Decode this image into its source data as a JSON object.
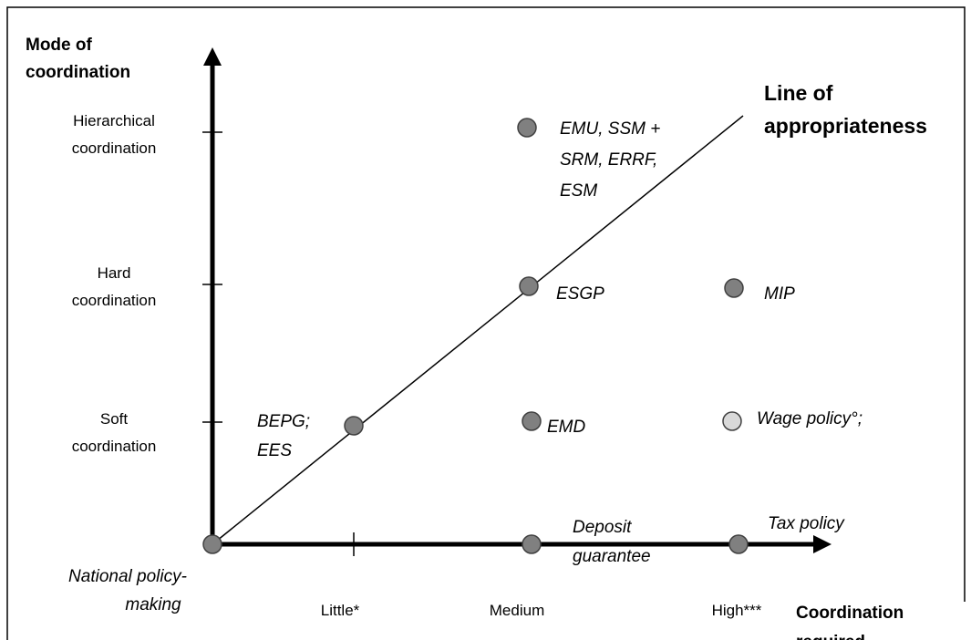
{
  "diagram": {
    "y_axis": {
      "title": [
        "Mode of",
        "coordination"
      ],
      "levels": [
        [
          "Hierarchical",
          "coordination"
        ],
        [
          "Hard",
          "coordination"
        ],
        [
          "Soft",
          "coordination"
        ]
      ]
    },
    "x_axis": {
      "title": [
        "Coordination",
        "required"
      ],
      "levels": [
        "Little*",
        "Medium",
        "High***"
      ]
    },
    "origin_label": [
      "National policy-",
      "making"
    ],
    "line_label": [
      "Line of",
      "appropriateness"
    ],
    "nodes": [
      {
        "label": [
          "EMU, SSM +",
          "SRM, ERRF,",
          "ESM"
        ]
      },
      {
        "label": [
          "ESGP"
        ]
      },
      {
        "label": [
          "MIP"
        ]
      },
      {
        "label": [
          "BEPG;",
          "EES"
        ]
      },
      {
        "label": [
          "EMD"
        ]
      },
      {
        "label": [
          "Wage policy°;"
        ]
      },
      {
        "label": [
          "Deposit",
          "guarantee"
        ]
      },
      {
        "label": [
          "Tax policy"
        ]
      }
    ]
  }
}
